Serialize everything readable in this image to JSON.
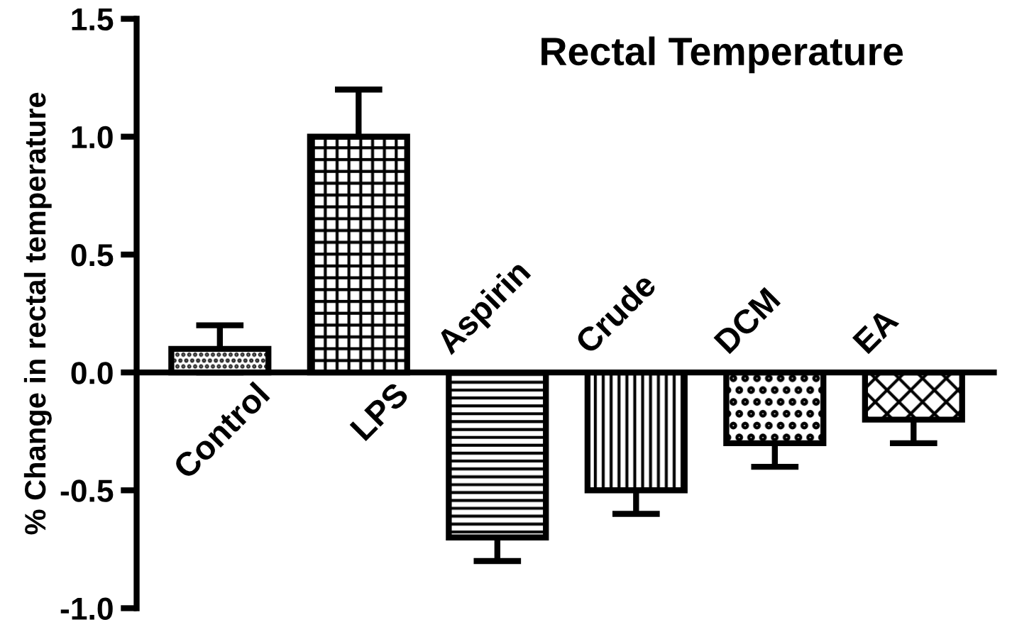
{
  "chart_data": {
    "type": "bar",
    "title": "Rectal Temperature",
    "ylabel": "% Change in rectal temperature",
    "categories": [
      "Control",
      "LPS",
      "Aspirin",
      "Crude",
      "DCM",
      "EA"
    ],
    "values": [
      0.1,
      1.0,
      -0.7,
      -0.5,
      -0.3,
      -0.2
    ],
    "errors": [
      0.1,
      0.2,
      0.1,
      0.1,
      0.1,
      0.1
    ],
    "color": "#000000",
    "ylim": [
      -1.0,
      1.5
    ],
    "yticks": [
      {
        "value": -1.0,
        "label": "-1.0"
      },
      {
        "value": -0.5,
        "label": "-0.5"
      },
      {
        "value": 0.0,
        "label": "0.0"
      },
      {
        "value": 0.5,
        "label": "0.5"
      },
      {
        "value": 1.0,
        "label": "1.0"
      },
      {
        "value": 1.5,
        "label": "1.5"
      }
    ],
    "grid": false
  }
}
